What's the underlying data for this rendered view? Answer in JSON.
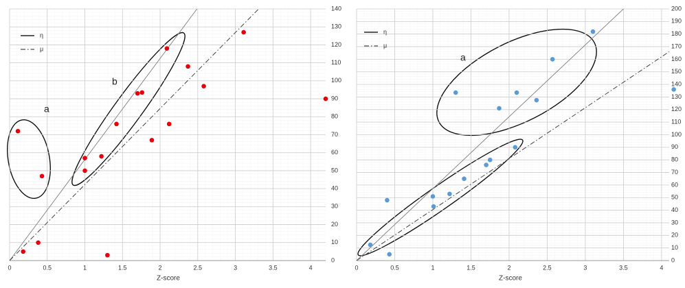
{
  "chart_data": [
    {
      "type": "scatter",
      "x_label": "Z-score",
      "grid": true,
      "xlim": [
        0,
        4.2
      ],
      "ylim": [
        0,
        140
      ],
      "xticks": [
        0,
        0.5,
        1,
        1.5,
        2,
        2.5,
        3,
        3.5,
        4
      ],
      "yticks": [
        0,
        10,
        20,
        30,
        40,
        50,
        60,
        70,
        80,
        90,
        100,
        110,
        120,
        130,
        140
      ],
      "points": {
        "color": "#e8000b",
        "x": [
          0.11,
          0.43,
          0.18,
          0.38,
          1.0,
          1.0,
          1.22,
          1.42,
          1.7,
          1.76,
          2.09,
          2.37,
          2.58,
          2.12,
          1.89,
          3.11,
          4.2,
          1.3
        ],
        "values": [
          72,
          47,
          5,
          10,
          57,
          50,
          58,
          76,
          93,
          93.5,
          118,
          108,
          97,
          76,
          67,
          127,
          90,
          3
        ]
      },
      "series": [
        {
          "name": "η",
          "style": "solid",
          "x": [
            0,
            2.49
          ],
          "values": [
            0,
            140
          ]
        },
        {
          "name": "μ",
          "style": "dashdot",
          "x": [
            0,
            3.31
          ],
          "values": [
            0,
            140
          ]
        }
      ],
      "annotations": [
        "a",
        "b"
      ]
    },
    {
      "type": "scatter",
      "x_label": "Z-score",
      "grid": true,
      "xlim": [
        0,
        4.1
      ],
      "ylim": [
        0,
        200
      ],
      "xticks": [
        0,
        0.5,
        1,
        1.5,
        2,
        2.5,
        3,
        3.5,
        4
      ],
      "yticks": [
        0,
        10,
        20,
        30,
        40,
        50,
        60,
        70,
        80,
        90,
        100,
        110,
        120,
        130,
        140,
        150,
        160,
        170,
        180,
        190,
        200
      ],
      "points": {
        "color": "#5b9bd5",
        "x": [
          3.1,
          2.57,
          1.3,
          2.1,
          1.87,
          2.36,
          4.16,
          2.08,
          1.75,
          1.7,
          1.41,
          1.22,
          1.0,
          1.01,
          0.4,
          0.18,
          0.43
        ],
        "values": [
          182,
          160,
          133.5,
          133.5,
          121,
          127.5,
          136,
          90,
          80,
          76,
          65,
          53,
          51,
          43,
          48,
          12.5,
          5
        ]
      },
      "series": [
        {
          "name": "η",
          "style": "solid",
          "x": [
            0,
            3.5
          ],
          "values": [
            0,
            200
          ]
        },
        {
          "name": "μ",
          "style": "dashdot",
          "x": [
            0,
            4.1
          ],
          "values": [
            0,
            166
          ]
        }
      ],
      "annotations": [
        "a"
      ]
    }
  ]
}
